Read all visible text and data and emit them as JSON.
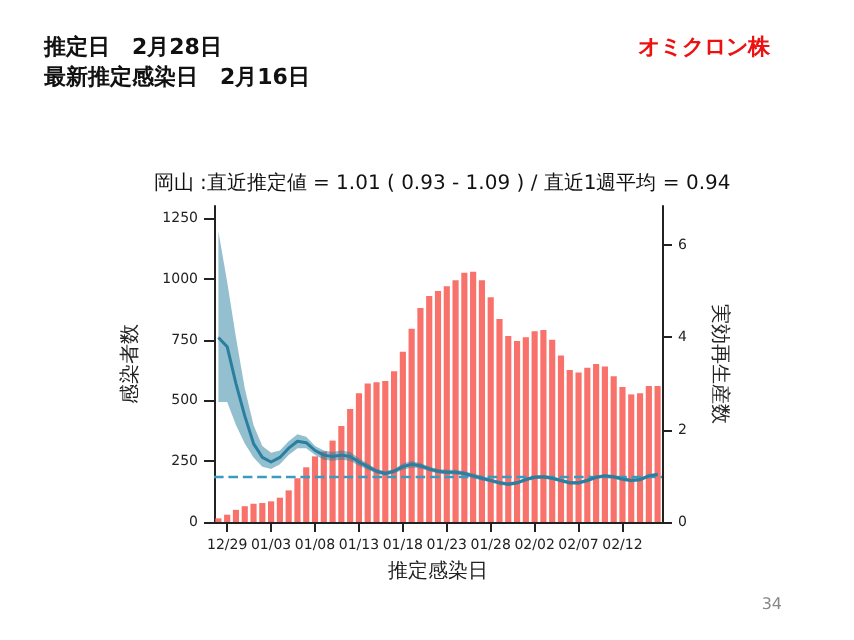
{
  "chart_data": {
    "type": "bar",
    "title": "岡山 :直近推定値 = 1.01 ( 0.93 - 1.09 ) / 直近1週平均 = 0.94",
    "xlabel": "推定感染日",
    "ylabel": "感染者数",
    "y2label": "実効再生産数",
    "annotations": [
      "推定日　2月28日",
      "最新推定感染日　2月16日",
      "オミクロン株",
      "34"
    ],
    "categories": [
      null,
      "12/29",
      null,
      null,
      null,
      null,
      "01/03",
      null,
      null,
      null,
      null,
      "01/08",
      null,
      null,
      null,
      null,
      "01/13",
      null,
      null,
      null,
      null,
      "01/18",
      null,
      null,
      null,
      null,
      "01/23",
      null,
      null,
      null,
      null,
      "01/28",
      null,
      null,
      null,
      null,
      "02/02",
      null,
      null,
      null,
      null,
      "02/07",
      null,
      null,
      null,
      null,
      "02/12",
      null,
      null,
      null,
      null
    ],
    "series": [
      {
        "color": "#f8716a",
        "values": [
          15,
          30,
          50,
          65,
          75,
          78,
          85,
          100,
          130,
          180,
          225,
          270,
          290,
          335,
          395,
          465,
          530,
          570,
          575,
          580,
          620,
          700,
          795,
          880,
          930,
          950,
          970,
          995,
          1025,
          1030,
          995,
          925,
          835,
          765,
          745,
          760,
          785,
          790,
          750,
          685,
          625,
          615,
          635,
          650,
          640,
          600,
          555,
          525,
          530,
          560,
          560
        ]
      },
      {
        "type": "line",
        "axis": "y2",
        "color": "#2a7fa0",
        "values": [
          4.0,
          3.8,
          3.0,
          2.3,
          1.7,
          1.4,
          1.3,
          1.4,
          1.6,
          1.75,
          1.72,
          1.55,
          1.45,
          1.42,
          1.45,
          1.42,
          1.3,
          1.2,
          1.1,
          1.05,
          1.1,
          1.2,
          1.25,
          1.22,
          1.15,
          1.1,
          1.08,
          1.08,
          1.05,
          1.0,
          0.95,
          0.9,
          0.85,
          0.82,
          0.85,
          0.92,
          0.97,
          0.98,
          0.95,
          0.9,
          0.85,
          0.85,
          0.9,
          0.97,
          1.0,
          0.98,
          0.93,
          0.9,
          0.92,
          1.0,
          1.03
        ],
        "lower": [
          2.6,
          2.6,
          2.1,
          1.7,
          1.4,
          1.2,
          1.15,
          1.25,
          1.45,
          1.6,
          1.6,
          1.45,
          1.35,
          1.33,
          1.35,
          1.33,
          1.22,
          1.13,
          1.05,
          1.0,
          1.05,
          1.13,
          1.18,
          1.16,
          1.1,
          1.05,
          1.03,
          1.03,
          1.0,
          0.95,
          0.9,
          0.86,
          0.81,
          0.78,
          0.81,
          0.88,
          0.93,
          0.94,
          0.91,
          0.86,
          0.81,
          0.81,
          0.86,
          0.93,
          0.96,
          0.94,
          0.89,
          0.86,
          0.88,
          0.96,
          0.99
        ],
        "upper": [
          6.3,
          5.2,
          4.0,
          2.9,
          2.1,
          1.65,
          1.5,
          1.55,
          1.75,
          1.9,
          1.85,
          1.65,
          1.55,
          1.52,
          1.55,
          1.52,
          1.38,
          1.27,
          1.15,
          1.1,
          1.15,
          1.27,
          1.32,
          1.28,
          1.2,
          1.15,
          1.13,
          1.13,
          1.1,
          1.05,
          1.0,
          0.94,
          0.89,
          0.86,
          0.89,
          0.96,
          1.01,
          1.02,
          0.99,
          0.94,
          0.89,
          0.89,
          0.94,
          1.01,
          1.04,
          1.02,
          0.97,
          0.94,
          0.96,
          1.04,
          1.07
        ]
      }
    ],
    "ylim": [
      0,
      1300
    ],
    "yticks": [
      0,
      250,
      500,
      750,
      1000,
      1250
    ],
    "y2lim": [
      0,
      6.85
    ],
    "y2ticks": [
      0,
      2,
      4,
      6
    ],
    "ref_lines": [
      {
        "axis": "y2",
        "value": 1,
        "color": "#3a9ac0",
        "line_style": "dashed"
      }
    ],
    "grid": false
  }
}
